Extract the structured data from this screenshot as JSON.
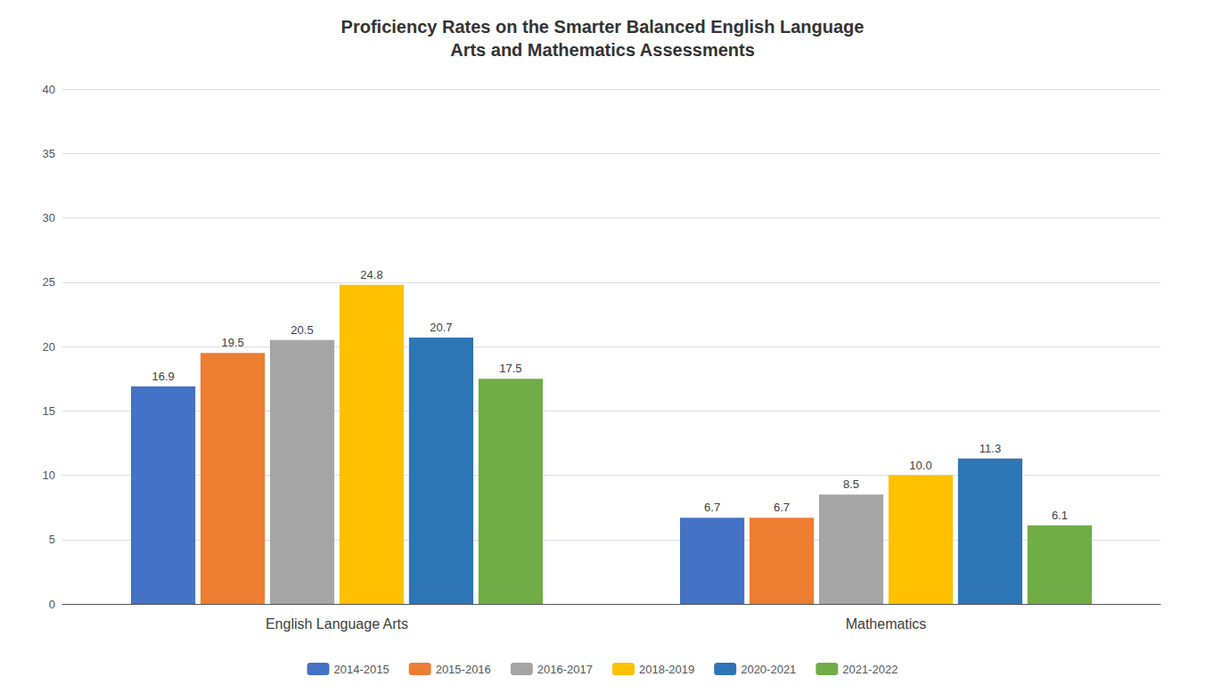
{
  "chart_data": {
    "type": "bar",
    "title": "Proficiency Rates on the Smarter Balanced English Language\nArts and Mathematics Assessments",
    "categories": [
      "English Language Arts",
      "Mathematics"
    ],
    "series": [
      {
        "name": "2014-2015",
        "color": "#4472C4",
        "values": [
          16.9,
          6.7
        ],
        "value_labels": [
          "16.9",
          "6.7"
        ]
      },
      {
        "name": "2015-2016",
        "color": "#ED7D31",
        "values": [
          19.5,
          6.7
        ],
        "value_labels": [
          "19.5",
          "6.7"
        ]
      },
      {
        "name": "2016-2017",
        "color": "#A5A5A5",
        "values": [
          20.5,
          8.5
        ],
        "value_labels": [
          "20.5",
          "8.5"
        ]
      },
      {
        "name": "2018-2019",
        "color": "#FFC000",
        "values": [
          24.8,
          10.0
        ],
        "value_labels": [
          "24.8",
          "10.0"
        ]
      },
      {
        "name": "2020-2021",
        "color": "#2E75B6",
        "values": [
          20.7,
          11.3
        ],
        "value_labels": [
          "20.7",
          "11.3"
        ]
      },
      {
        "name": "2021-2022",
        "color": "#70AD47",
        "values": [
          17.5,
          6.1
        ],
        "value_labels": [
          "17.5",
          "6.1"
        ]
      }
    ],
    "ylim": [
      0,
      40
    ],
    "yticks": [
      0,
      5,
      10,
      15,
      20,
      25,
      30,
      35,
      40
    ],
    "grid": true,
    "legend": "bottom",
    "data_labels": true
  }
}
